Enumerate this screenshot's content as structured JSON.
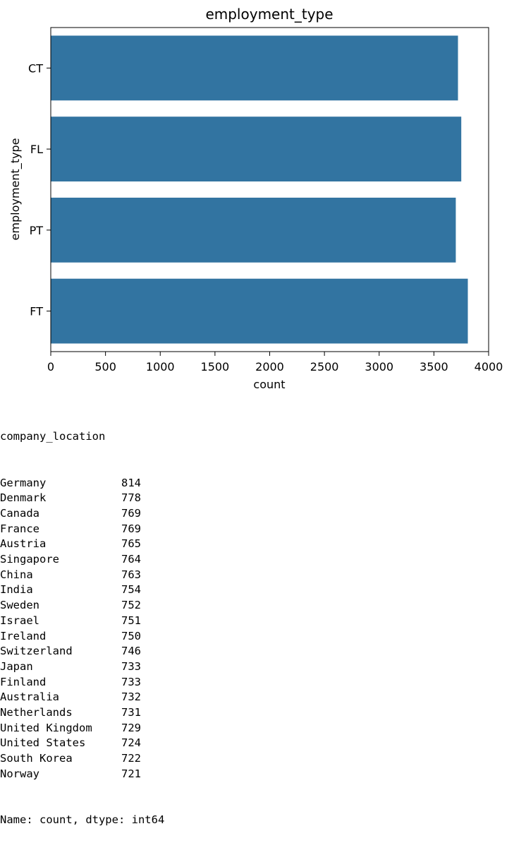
{
  "chart_data": {
    "type": "bar",
    "orientation": "horizontal",
    "title": "employment_type",
    "xlabel": "count",
    "ylabel": "employment_type",
    "categories": [
      "CT",
      "FL",
      "PT",
      "FT"
    ],
    "values": [
      3720,
      3750,
      3700,
      3810
    ],
    "xlim": [
      0,
      4000
    ],
    "xticks": [
      0,
      500,
      1000,
      1500,
      2000,
      2500,
      3000,
      3500,
      4000
    ],
    "bar_color": "#3274a1",
    "grid": false,
    "legend": "none"
  },
  "series_output": {
    "name": "company_location",
    "rows": [
      {
        "label": "Germany",
        "value": "814"
      },
      {
        "label": "Denmark",
        "value": "778"
      },
      {
        "label": "Canada",
        "value": "769"
      },
      {
        "label": "France",
        "value": "769"
      },
      {
        "label": "Austria",
        "value": "765"
      },
      {
        "label": "Singapore",
        "value": "764"
      },
      {
        "label": "China",
        "value": "763"
      },
      {
        "label": "India",
        "value": "754"
      },
      {
        "label": "Sweden",
        "value": "752"
      },
      {
        "label": "Israel",
        "value": "751"
      },
      {
        "label": "Ireland",
        "value": "750"
      },
      {
        "label": "Switzerland",
        "value": "746"
      },
      {
        "label": "Japan",
        "value": "733"
      },
      {
        "label": "Finland",
        "value": "733"
      },
      {
        "label": "Australia",
        "value": "732"
      },
      {
        "label": "Netherlands",
        "value": "731"
      },
      {
        "label": "United Kingdom",
        "value": "729"
      },
      {
        "label": "United States",
        "value": "724"
      },
      {
        "label": "South Korea",
        "value": "722"
      },
      {
        "label": "Norway",
        "value": "721"
      }
    ],
    "footer": "Name: count, dtype: int64"
  }
}
